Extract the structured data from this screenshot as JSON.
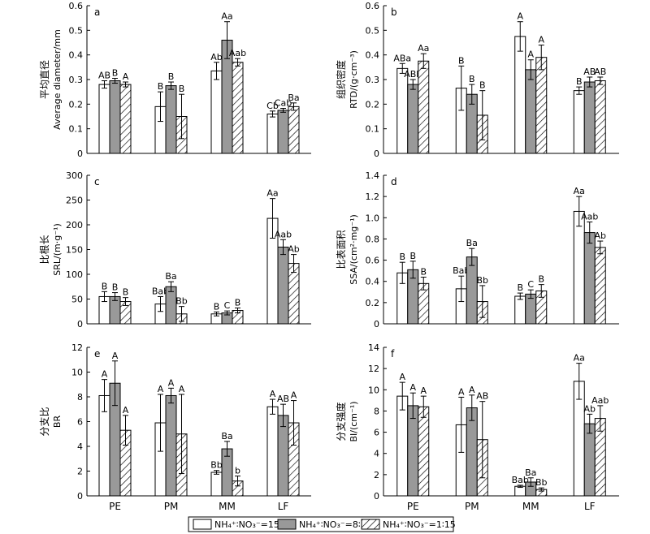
{
  "figure": {
    "legend": [
      {
        "label": "NH₄⁺∶NO₃⁻=15∶1",
        "fill": "white"
      },
      {
        "label": "NH₄⁺∶NO₃⁻=8∶8",
        "fill": "gray"
      },
      {
        "label": "NH₄⁺∶NO₃⁻=1∶15",
        "fill": "hatch"
      }
    ],
    "colors": {
      "gray_bar": "#999999",
      "axis": "#000000",
      "background": "#ffffff"
    }
  },
  "chart_data": [
    {
      "panel": "a",
      "type": "bar",
      "ylabel_cn": "平均直径",
      "ylabel_en": "Average diameter/mm",
      "ylim": [
        0,
        0.6
      ],
      "yticks": [
        "0",
        "0.1",
        "0.2",
        "0.3",
        "0.4",
        "0.5",
        "0.6"
      ],
      "categories": [
        "PE",
        "PM",
        "MM",
        "LF"
      ],
      "series": [
        {
          "values": [
            0.28,
            0.19,
            0.335,
            0.16
          ],
          "errors": [
            0.015,
            0.06,
            0.035,
            0.012
          ],
          "labels": [
            "AB",
            "B",
            "Ab",
            "Cb"
          ]
        },
        {
          "values": [
            0.295,
            0.275,
            0.46,
            0.175
          ],
          "errors": [
            0.01,
            0.015,
            0.075,
            0.008
          ],
          "labels": [
            "B",
            "B",
            "Aa",
            "Cab"
          ]
        },
        {
          "values": [
            0.28,
            0.15,
            0.37,
            0.19
          ],
          "errors": [
            0.01,
            0.09,
            0.015,
            0.015
          ],
          "labels": [
            "A",
            "B",
            "Aab",
            "Ba"
          ]
        }
      ]
    },
    {
      "panel": "b",
      "type": "bar",
      "ylabel_cn": "组织密度",
      "ylabel_en": "RTD/(g·cm⁻³)",
      "ylim": [
        0,
        0.6
      ],
      "yticks": [
        "0",
        "0.1",
        "0.2",
        "0.3",
        "0.4",
        "0.5",
        "0.6"
      ],
      "categories": [
        "PE",
        "PM",
        "MM",
        "LF"
      ],
      "series": [
        {
          "values": [
            0.345,
            0.265,
            0.475,
            0.255
          ],
          "errors": [
            0.02,
            0.09,
            0.06,
            0.015
          ],
          "labels": [
            "ABa",
            "B",
            "A",
            "B"
          ]
        },
        {
          "values": [
            0.28,
            0.24,
            0.34,
            0.29
          ],
          "errors": [
            0.02,
            0.04,
            0.04,
            0.02
          ],
          "labels": [
            "ABb",
            "B",
            "A",
            "AB"
          ]
        },
        {
          "values": [
            0.375,
            0.155,
            0.39,
            0.295
          ],
          "errors": [
            0.03,
            0.1,
            0.05,
            0.015
          ],
          "labels": [
            "Aa",
            "B",
            "A",
            "AB"
          ]
        }
      ]
    },
    {
      "panel": "c",
      "type": "bar",
      "ylabel_cn": "比根长",
      "ylabel_en": "SRL/(m·g⁻¹)",
      "ylim": [
        0,
        300
      ],
      "yticks": [
        "0",
        "50",
        "100",
        "150",
        "200",
        "250",
        "300"
      ],
      "categories": [
        "PE",
        "PM",
        "MM",
        "LF"
      ],
      "series": [
        {
          "values": [
            55,
            40,
            20,
            213
          ],
          "errors": [
            10,
            15,
            4,
            40
          ],
          "labels": [
            "B",
            "Bab",
            "B",
            "Aa"
          ]
        },
        {
          "values": [
            55,
            75,
            22,
            155
          ],
          "errors": [
            8,
            10,
            4,
            15
          ],
          "labels": [
            "B",
            "Ba",
            "C",
            "Aab"
          ]
        },
        {
          "values": [
            45,
            20,
            27,
            122
          ],
          "errors": [
            8,
            15,
            5,
            18
          ],
          "labels": [
            "B",
            "Bb",
            "B",
            "Ab"
          ]
        }
      ]
    },
    {
      "panel": "d",
      "type": "bar",
      "ylabel_cn": "比表面积",
      "ylabel_en": "SSA/(cm²·mg⁻¹)",
      "ylim": [
        0,
        1.4
      ],
      "yticks": [
        "0",
        "0.2",
        "0.4",
        "0.6",
        "0.8",
        "1.0",
        "1.2",
        "1.4"
      ],
      "categories": [
        "PE",
        "PM",
        "MM",
        "LF"
      ],
      "series": [
        {
          "values": [
            0.48,
            0.33,
            0.26,
            1.06
          ],
          "errors": [
            0.1,
            0.12,
            0.03,
            0.14
          ],
          "labels": [
            "B",
            "Bab",
            "B",
            "Aa"
          ]
        },
        {
          "values": [
            0.51,
            0.63,
            0.28,
            0.86
          ],
          "errors": [
            0.08,
            0.08,
            0.04,
            0.1
          ],
          "labels": [
            "B",
            "Ba",
            "C",
            "Aab"
          ]
        },
        {
          "values": [
            0.38,
            0.21,
            0.31,
            0.72
          ],
          "errors": [
            0.06,
            0.15,
            0.06,
            0.06
          ],
          "labels": [
            "B",
            "Bb",
            "B",
            "Ab"
          ]
        }
      ]
    },
    {
      "panel": "e",
      "type": "bar",
      "ylabel_cn": "分支比",
      "ylabel_en": "BR",
      "ylim": [
        0,
        12
      ],
      "yticks": [
        "0",
        "2",
        "4",
        "6",
        "8",
        "10",
        "12"
      ],
      "categories": [
        "PE",
        "PM",
        "MM",
        "LF"
      ],
      "series": [
        {
          "values": [
            8.1,
            5.9,
            1.9,
            7.2
          ],
          "errors": [
            1.3,
            2.3,
            0.15,
            0.6
          ],
          "labels": [
            "A",
            "A",
            "Bb",
            "A"
          ]
        },
        {
          "values": [
            9.1,
            8.1,
            3.8,
            6.5
          ],
          "errors": [
            1.8,
            0.6,
            0.6,
            0.9
          ],
          "labels": [
            "A",
            "A",
            "Ba",
            "AB"
          ]
        },
        {
          "values": [
            5.3,
            5.0,
            1.2,
            5.9
          ],
          "errors": [
            1.2,
            3.2,
            0.4,
            1.8
          ],
          "labels": [
            "A",
            "A",
            "b",
            "A"
          ]
        }
      ]
    },
    {
      "panel": "f",
      "type": "bar",
      "ylabel_cn": "分支强度",
      "ylabel_en": "BI/(cm⁻¹)",
      "ylim": [
        0,
        14
      ],
      "yticks": [
        "0",
        "2",
        "4",
        "6",
        "8",
        "10",
        "12",
        "14"
      ],
      "categories": [
        "PE",
        "PM",
        "MM",
        "LF"
      ],
      "series": [
        {
          "values": [
            9.4,
            6.7,
            0.9,
            10.8
          ],
          "errors": [
            1.3,
            2.6,
            0.1,
            1.7
          ],
          "labels": [
            "A",
            "A",
            "Bab",
            "Aa"
          ]
        },
        {
          "values": [
            8.5,
            8.3,
            1.3,
            6.8
          ],
          "errors": [
            1.2,
            1.2,
            0.4,
            0.9
          ],
          "labels": [
            "A",
            "A",
            "Ba",
            "Ab"
          ]
        },
        {
          "values": [
            8.4,
            5.3,
            0.6,
            7.3
          ],
          "errors": [
            1.0,
            3.6,
            0.15,
            1.2
          ],
          "labels": [
            "A",
            "AB",
            "Bb",
            "Aab"
          ]
        }
      ]
    }
  ]
}
